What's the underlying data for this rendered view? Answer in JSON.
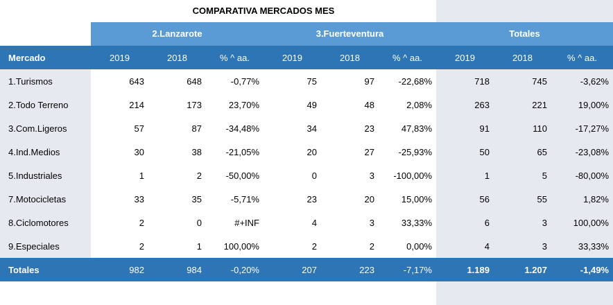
{
  "title": "COMPARATIVA MERCADOS MES",
  "groups": {
    "lanzarote": "2.Lanzarote",
    "fuerteventura": "3.Fuerteventura",
    "totales": "Totales"
  },
  "header": {
    "mercado": "Mercado",
    "cols": [
      "2019",
      "2018",
      "% ^ aa.",
      "2019",
      "2018",
      "% ^ aa.",
      "2019",
      "2018",
      "% ^ aa."
    ]
  },
  "rows": [
    {
      "label": "1.Turismos",
      "values": [
        "643",
        "648",
        "-0,77%",
        "75",
        "97",
        "-22,68%",
        "718",
        "745",
        "-3,62%"
      ]
    },
    {
      "label": "2.Todo Terreno",
      "values": [
        "214",
        "173",
        "23,70%",
        "49",
        "48",
        "2,08%",
        "263",
        "221",
        "19,00%"
      ]
    },
    {
      "label": "3.Com.Ligeros",
      "values": [
        "57",
        "87",
        "-34,48%",
        "34",
        "23",
        "47,83%",
        "91",
        "110",
        "-17,27%"
      ]
    },
    {
      "label": "4.Ind.Medios",
      "values": [
        "30",
        "38",
        "-21,05%",
        "20",
        "27",
        "-25,93%",
        "50",
        "65",
        "-23,08%"
      ]
    },
    {
      "label": "5.Industriales",
      "values": [
        "1",
        "2",
        "-50,00%",
        "0",
        "3",
        "-100,00%",
        "1",
        "5",
        "-80,00%"
      ]
    },
    {
      "label": "7.Motocicletas",
      "values": [
        "33",
        "35",
        "-5,71%",
        "23",
        "20",
        "15,00%",
        "56",
        "55",
        "1,82%"
      ]
    },
    {
      "label": "8.Ciclomotores",
      "values": [
        "2",
        "0",
        "#+INF",
        "4",
        "3",
        "33,33%",
        "6",
        "3",
        "100,00%"
      ]
    },
    {
      "label": "9.Especiales",
      "values": [
        "2",
        "1",
        "100,00%",
        "2",
        "2",
        "0,00%",
        "4",
        "3",
        "33,33%"
      ]
    }
  ],
  "totals": {
    "label": "Totales",
    "values": [
      "982",
      "984",
      "-0,20%",
      "207",
      "223",
      "-7,17%",
      "1.189",
      "1.207",
      "-1,49%"
    ]
  },
  "colors": {
    "header_blue": "#2e75b6",
    "group_blue": "#5b9bd5",
    "shade_gray": "#e6eaf0"
  }
}
